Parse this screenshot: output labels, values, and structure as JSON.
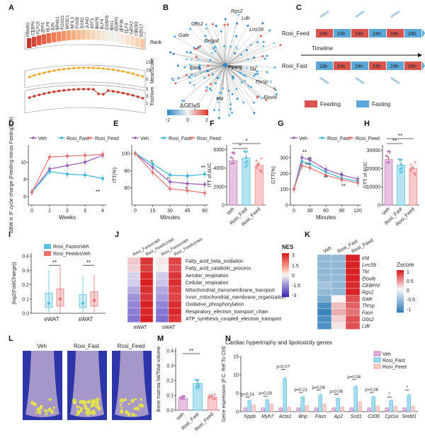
{
  "panel_labels": [
    "A",
    "B",
    "C",
    "D",
    "E",
    "F",
    "G",
    "H",
    "I",
    "J",
    "K",
    "L",
    "M",
    "N"
  ],
  "A": {
    "genes": [
      "PPARG",
      "CEBPA",
      "KLF15",
      "ZFP3",
      "KLF9",
      "JUN",
      "NR4A1",
      "FOXO1",
      "NR3C1",
      "NFIL3",
      "FOSB",
      "EGR1",
      "JUND",
      "ATF3",
      "MAFB",
      "KLF4",
      "CEBPB",
      "MXI1",
      "CEBPD",
      "ZFP36",
      "ELF3",
      "GATA2",
      "CREB3",
      "SOX17"
    ],
    "rank_label": "Rank",
    "meanscore_label": "MeanScore",
    "meanscore_ticks": [
      "150",
      "75",
      "0"
    ],
    "meanscore_values": [
      82,
      84,
      86,
      87,
      88,
      88,
      89,
      90,
      90,
      91,
      91,
      92,
      92,
      92,
      93,
      93,
      93,
      94,
      94,
      94,
      95,
      95,
      95,
      96
    ],
    "tissnum_label": "TissNum",
    "tissnum_ticks": [
      "5",
      "3",
      "1"
    ],
    "tissnum_values": [
      4,
      4,
      4,
      4,
      4,
      4,
      4,
      4,
      4,
      4,
      4,
      4,
      4,
      4,
      3,
      3,
      4,
      4,
      4,
      4,
      4,
      4,
      4,
      4
    ]
  },
  "B": {
    "center_gene": "Pparg",
    "genes": [
      "Rgs2",
      "Ldlr",
      "Lrrc39",
      "G0s2",
      "Cebpd",
      "Gale",
      "Fasn",
      "Tkt",
      "Thrsp",
      "Irf4",
      "Elovl6"
    ],
    "legend_title": "ΔGElaS",
    "legend_ticks": [
      "-2",
      "0",
      "2"
    ]
  },
  "C": {
    "groups": [
      {
        "name": "Rosi_Feed",
        "color": "#d9534f"
      },
      {
        "name": "Rosi_Fast",
        "color": "#3a8fc7"
      }
    ],
    "period_label": "24h",
    "timeline_label": "Timeline",
    "legend": [
      {
        "name": "Feeding",
        "color": "#d9534f"
      },
      {
        "name": "Fasting",
        "color": "#5aa7d8"
      }
    ]
  },
  "D": {
    "chart_data": {
      "type": "line",
      "xlabel": "Weeks",
      "ylabel": "ΔBW in IF cycle change (Feeding minus Fasting) (%)",
      "x": [
        0,
        1,
        2,
        3,
        4
      ],
      "ylim": [
        5,
        12
      ],
      "yticks": [
        "6",
        "8",
        "10"
      ],
      "series": [
        {
          "name": "Veh",
          "color": "#9b59b6",
          "values": [
            6.5,
            9.2,
            9.6,
            10.0,
            10.8
          ]
        },
        {
          "name": "Rosi_Fast",
          "color": "#3bb4d8",
          "values": [
            6.5,
            8.9,
            8.6,
            8.5,
            8.1
          ]
        },
        {
          "name": "Rosi_Feed",
          "color": "#e57373",
          "values": [
            6.5,
            10.6,
            10.7,
            10.8,
            10.9
          ]
        }
      ],
      "annotation": "**"
    }
  },
  "E": {
    "chart_data": {
      "type": "line",
      "xlabel": "Minutes",
      "ylabel": "ITT(%)",
      "x": [
        0,
        15,
        30,
        45,
        60
      ],
      "ylim": [
        40,
        110
      ],
      "yticks": [
        "100",
        "80",
        "60"
      ],
      "series": [
        {
          "name": "Veh",
          "color": "#9b59b6",
          "values": [
            100,
            84,
            67,
            65,
            64
          ]
        },
        {
          "name": "Rosi_Fast",
          "color": "#3bb4d8",
          "values": [
            100,
            88,
            75,
            74,
            76
          ]
        },
        {
          "name": "Rosi_Feed",
          "color": "#e57373",
          "values": [
            100,
            78,
            59,
            57,
            54
          ]
        }
      ],
      "annotations": [
        "*",
        "*",
        "*",
        "**"
      ]
    }
  },
  "F": {
    "chart_data": {
      "type": "bar",
      "ylabel": "ITT of AUC",
      "categories": [
        "Veh",
        "Rosi_Fast",
        "Rosi_Feed"
      ],
      "values": [
        4800,
        5100,
        4300
      ],
      "ylim": [
        0,
        6500
      ],
      "yticks": [
        "0",
        "2000",
        "4000",
        "6000"
      ],
      "annotations": [
        "*",
        "*"
      ]
    }
  },
  "G": {
    "chart_data": {
      "type": "line",
      "xlabel": "Minutes",
      "ylabel": "GTT(%)",
      "x": [
        0,
        15,
        30,
        60,
        90,
        120
      ],
      "ylim": [
        0,
        380
      ],
      "yticks": [
        "0",
        "100",
        "200",
        "300"
      ],
      "series": [
        {
          "name": "Veh",
          "color": "#9b59b6",
          "values": [
            100,
            300,
            285,
            225,
            190,
            165
          ]
        },
        {
          "name": "Rosi_Fast",
          "color": "#3bb4d8",
          "values": [
            100,
            275,
            260,
            210,
            170,
            150
          ]
        },
        {
          "name": "Rosi_Feed",
          "color": "#e57373",
          "values": [
            100,
            250,
            235,
            190,
            160,
            140
          ]
        }
      ],
      "xticks": [
        "0",
        "30",
        "60",
        "90",
        "120"
      ],
      "annotations": [
        "**",
        "**",
        "**",
        "**",
        "*",
        "**"
      ]
    }
  },
  "H": {
    "chart_data": {
      "type": "bar",
      "ylabel": "GTT of AUC",
      "categories": [
        "Veh",
        "Rosi_Fast",
        "Rosi_Feed"
      ],
      "values": [
        25000,
        22000,
        20000
      ],
      "ylim": [
        0,
        33000
      ],
      "yticks": [
        "0",
        "10000",
        "20000",
        "30000"
      ],
      "annotations": [
        "**",
        "**"
      ]
    }
  },
  "I": {
    "chart_data": {
      "type": "box",
      "ylabel": "|log2(FoldChange)|",
      "categories": [
        "eWAT",
        "sWAT"
      ],
      "ylim": [
        0,
        0.42
      ],
      "yticks": [
        "0.0",
        "0.1",
        "0.2",
        "0.3",
        "0.4"
      ],
      "series": [
        {
          "name": "Rosi_FastvsVeh",
          "color": "#5bc0de"
        },
        {
          "name": "Rosi_FeedvsVeh",
          "color": "#e57373"
        }
      ],
      "annotations": [
        "**",
        "**"
      ]
    }
  },
  "J": {
    "col_labels": [
      "Rosi_FastvsVeh",
      "Rosi_FeedvsVeh",
      "Rosi_FastvsVeh",
      "Rosi_FeedvsVeh"
    ],
    "group_labels": [
      "eWAT",
      "sWAT"
    ],
    "rows": [
      "Fatty_acid_beta_oxidation",
      "Fatty_acid_catabolic_process",
      "Aerobic_respiration",
      "Cellular_respiration",
      "Mitochondrial_transmembrane_transport",
      "Inner_mitochondrial_membrane_organization",
      "Oxidative_phosphorylation",
      "Respiratory_electron_transport_chain",
      "ATP_synthesis_coupled_electron_transport"
    ],
    "values": [
      [
        0.6,
        2.6,
        0.2,
        2.4
      ],
      [
        0.5,
        2.5,
        0.1,
        2.3
      ],
      [
        -0.5,
        2.8,
        -0.6,
        2.6
      ],
      [
        -0.6,
        2.9,
        -0.7,
        2.7
      ],
      [
        -1.0,
        2.7,
        -1.1,
        2.5
      ],
      [
        -1.4,
        2.6,
        -1.3,
        2.4
      ],
      [
        -1.6,
        2.9,
        -1.6,
        2.7
      ],
      [
        -1.7,
        2.8,
        -1.8,
        2.8
      ],
      [
        -1.8,
        2.9,
        -1.9,
        2.6
      ]
    ],
    "legend_title": "NES",
    "legend_ticks": [
      "3",
      "1.5",
      "0",
      "-1.5",
      "-3"
    ]
  },
  "K": {
    "col_labels": [
      "Veh",
      "Rosi_Fast",
      "Rosi_Feed"
    ],
    "rows": [
      "Irf4",
      "Lrrc39",
      "Tkt",
      "Elovl6",
      "CEBP/d",
      "Rgs2",
      "Gale",
      "Thrsp",
      "Fasn",
      "G0s2",
      "Ldlr"
    ],
    "values": [
      [
        -0.6,
        -0.6,
        1.15
      ],
      [
        -0.6,
        -0.6,
        1.15
      ],
      [
        -0.6,
        -0.6,
        1.15
      ],
      [
        -0.6,
        -0.6,
        1.15
      ],
      [
        -0.5,
        -0.6,
        1.1
      ],
      [
        -0.6,
        -0.6,
        1.15
      ],
      [
        -0.7,
        0.0,
        0.9
      ],
      [
        -1.0,
        0.3,
        0.8
      ],
      [
        -1.1,
        0.4,
        0.7
      ],
      [
        -1.0,
        0.2,
        0.9
      ],
      [
        -1.0,
        0.1,
        0.9
      ]
    ],
    "legend_title": "Zscore",
    "legend_ticks": [
      "1",
      "0.5",
      "0",
      "-0.5",
      "-1"
    ]
  },
  "L": {
    "labels": [
      "Veh",
      "Rosi_Fast",
      "Rosi_Feed"
    ]
  },
  "M": {
    "chart_data": {
      "type": "bar",
      "ylabel": "Bone marrow fat/Total volume",
      "categories": [
        "Veh",
        "Rosi_Fast",
        "Rosi_Feed"
      ],
      "values": [
        0.08,
        0.18,
        0.09
      ],
      "ylim": [
        0,
        0.42
      ],
      "yticks": [
        "0.0",
        "0.1",
        "0.2",
        "0.3",
        "0.4"
      ],
      "annotations": [
        "**"
      ]
    }
  },
  "N": {
    "title": "Cardiac hypertrophy and lipotoxicity genes",
    "chart_data": {
      "type": "bar",
      "ylabel": "Gene expression (F.C. Ref To Ctrl)",
      "categories": [
        "Nppb",
        "Myh7",
        "Acta1",
        "Bnp",
        "Fasn",
        "Ap2",
        "Scd1",
        "Cd36",
        "Cpt1a",
        "Srebf1"
      ],
      "ylim": [
        0,
        15
      ],
      "yticks": [
        "0",
        "5",
        "10",
        "15"
      ],
      "series": [
        {
          "name": "Veh",
          "color": "#c77dbd",
          "values": [
            1,
            1,
            1,
            1,
            1,
            1,
            1,
            1,
            1,
            1
          ]
        },
        {
          "name": "Rosi_Fast",
          "color": "#5bc0de",
          "values": [
            3.0,
            3.2,
            9.0,
            4.0,
            4.5,
            3.6,
            6.8,
            4.0,
            3.0,
            4.5
          ]
        },
        {
          "name": "Rosi_Feed",
          "color": "#f4a6a6",
          "values": [
            1.8,
            2.0,
            1.2,
            1.6,
            2.0,
            1.2,
            2.6,
            1.5,
            1.4,
            1.4
          ]
        }
      ],
      "pvalues": [
        "p=0.24",
        "p=0.09",
        "p=0.07",
        "p=0.21",
        "p=0.06",
        "p=0.06",
        "p=0.08",
        "p=0.06",
        "*",
        "*"
      ]
    }
  }
}
